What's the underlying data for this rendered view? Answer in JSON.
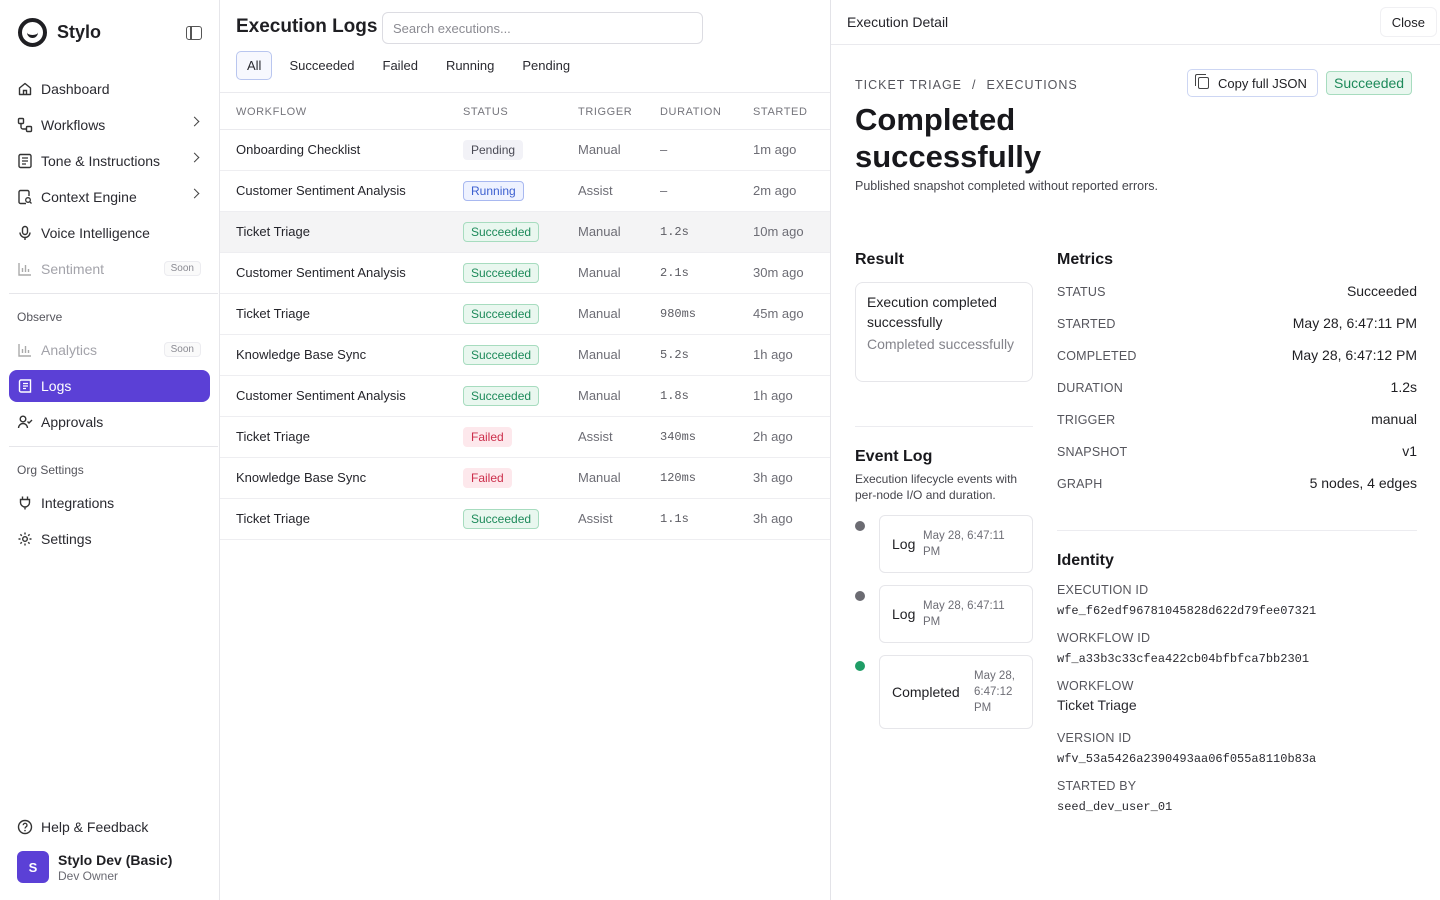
{
  "app": {
    "name": "Stylo"
  },
  "sidebar": {
    "items": [
      {
        "label": "Dashboard"
      },
      {
        "label": "Workflows"
      },
      {
        "label": "Tone & Instructions"
      },
      {
        "label": "Context Engine"
      },
      {
        "label": "Voice Intelligence"
      },
      {
        "label": "Sentiment",
        "badge": "Soon"
      },
      {
        "label": "Analytics",
        "badge": "Soon"
      },
      {
        "label": "Logs"
      },
      {
        "label": "Approvals"
      },
      {
        "label": "Integrations"
      },
      {
        "label": "Settings"
      },
      {
        "label": "Help & Feedback"
      }
    ],
    "sections": {
      "observe": "Observe",
      "org": "Org Settings"
    },
    "user": {
      "initial": "S",
      "name": "Stylo Dev (Basic)",
      "role": "Dev Owner"
    }
  },
  "main": {
    "title": "Execution Logs",
    "search_placeholder": "Search executions...",
    "filters": [
      "All",
      "Succeeded",
      "Failed",
      "Running",
      "Pending"
    ],
    "columns": [
      "WORKFLOW",
      "STATUS",
      "TRIGGER",
      "DURATION",
      "STARTED"
    ],
    "rows": [
      {
        "workflow": "Onboarding Checklist",
        "status": "Pending",
        "trigger": "Manual",
        "duration": "–",
        "started": "1m ago"
      },
      {
        "workflow": "Customer Sentiment Analysis",
        "status": "Running",
        "trigger": "Assist",
        "duration": "–",
        "started": "2m ago"
      },
      {
        "workflow": "Ticket Triage",
        "status": "Succeeded",
        "trigger": "Manual",
        "duration": "1.2s",
        "started": "10m ago"
      },
      {
        "workflow": "Customer Sentiment Analysis",
        "status": "Succeeded",
        "trigger": "Manual",
        "duration": "2.1s",
        "started": "30m ago"
      },
      {
        "workflow": "Ticket Triage",
        "status": "Succeeded",
        "trigger": "Manual",
        "duration": "980ms",
        "started": "45m ago"
      },
      {
        "workflow": "Knowledge Base Sync",
        "status": "Succeeded",
        "trigger": "Manual",
        "duration": "5.2s",
        "started": "1h ago"
      },
      {
        "workflow": "Customer Sentiment Analysis",
        "status": "Succeeded",
        "trigger": "Manual",
        "duration": "1.8s",
        "started": "1h ago"
      },
      {
        "workflow": "Ticket Triage",
        "status": "Failed",
        "trigger": "Assist",
        "duration": "340ms",
        "started": "2h ago"
      },
      {
        "workflow": "Knowledge Base Sync",
        "status": "Failed",
        "trigger": "Manual",
        "duration": "120ms",
        "started": "3h ago"
      },
      {
        "workflow": "Ticket Triage",
        "status": "Succeeded",
        "trigger": "Assist",
        "duration": "1.1s",
        "started": "3h ago"
      }
    ]
  },
  "detail": {
    "header_title": "Execution Detail",
    "close_label": "Close",
    "breadcrumb": [
      "TICKET TRIAGE",
      "/",
      "EXECUTIONS"
    ],
    "copy_label": "Copy full JSON",
    "status": "Succeeded",
    "headline": "Completed successfully",
    "subline": "Published snapshot completed without reported errors.",
    "result": {
      "heading": "Result",
      "main": "Execution completed successfully",
      "sub": "Completed successfully"
    },
    "event_log": {
      "heading": "Event Log",
      "description": "Execution lifecycle events with per-node I/O and duration.",
      "events": [
        {
          "label": "Log",
          "time": "May 28, 6:47:11 PM",
          "color": "#6b6b72"
        },
        {
          "label": "Log",
          "time": "May 28, 6:47:11 PM",
          "color": "#6b6b72"
        },
        {
          "label": "Completed",
          "time": "May 28, 6:47:12 PM",
          "color": "#1f9d66"
        }
      ]
    },
    "metrics": {
      "heading": "Metrics",
      "items": [
        {
          "key": "STATUS",
          "value": "Succeeded"
        },
        {
          "key": "STARTED",
          "value": "May 28, 6:47:11 PM"
        },
        {
          "key": "COMPLETED",
          "value": "May 28, 6:47:12 PM"
        },
        {
          "key": "DURATION",
          "value": "1.2s"
        },
        {
          "key": "TRIGGER",
          "value": "manual"
        },
        {
          "key": "SNAPSHOT",
          "value": "v1"
        },
        {
          "key": "GRAPH",
          "value": "5 nodes, 4 edges"
        }
      ]
    },
    "identity": {
      "heading": "Identity",
      "items": [
        {
          "key": "EXECUTION ID",
          "value": "wfe_f62edf96781045828d622d79fee07321"
        },
        {
          "key": "WORKFLOW ID",
          "value": "wf_a33b3c33cfea422cb04bfbfca7bb2301"
        },
        {
          "key": "WORKFLOW",
          "value": "Ticket Triage"
        },
        {
          "key": "VERSION ID",
          "value": "wfv_53a5426a2390493aa06f055a8110b83a"
        },
        {
          "key": "STARTED BY",
          "value": "seed_dev_user_01"
        }
      ]
    }
  }
}
